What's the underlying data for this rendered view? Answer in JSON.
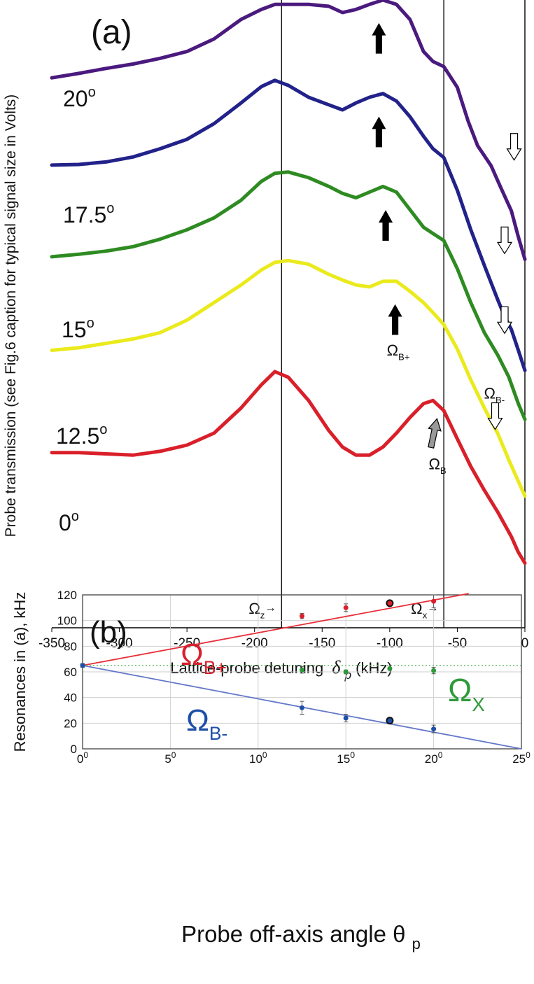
{
  "chart_data": [
    {
      "type": "line",
      "panel_label": "(a)",
      "xlabel": "Lattice-probe detuning",
      "xlabel_symbol": "δ",
      "xlabel_sub": "p",
      "xlabel_unit": "(kHz)",
      "ylabel": "Probe transmission (see Fig.6 caption for typical signal size in Volts)",
      "xlim": [
        -350,
        0
      ],
      "ylim": [
        0,
        100
      ],
      "xticks": [
        "-350",
        "-300",
        "-250",
        "-200",
        "-150",
        "-100",
        "-50",
        "0"
      ],
      "vlines": [
        {
          "x": -180,
          "label_main": "Ω",
          "label_sub": "z",
          "label_suffix": "→"
        },
        {
          "x": -60,
          "label_main": "Ω",
          "label_sub": "x",
          "label_suffix": "→"
        }
      ],
      "series": [
        {
          "name": "20°",
          "label_main": "20",
          "label_sup": "o",
          "color": "#4b1a7e",
          "x": [
            -350,
            -330,
            -310,
            -290,
            -270,
            -250,
            -230,
            -210,
            -195,
            -185,
            -175,
            -160,
            -145,
            -135,
            -125,
            -115,
            -105,
            -95,
            -85,
            -75,
            -68,
            -60,
            -50,
            -42,
            -35,
            -25,
            -18,
            -10,
            -5,
            0
          ],
          "y": [
            87.6,
            88.3,
            89.1,
            89.8,
            90.7,
            91.8,
            93.8,
            96.9,
            98.5,
            99.3,
            99.3,
            99.3,
            99.0,
            98.0,
            98.5,
            99.3,
            100.0,
            99.3,
            96.9,
            91.8,
            90.2,
            89.4,
            86.1,
            80.7,
            76.8,
            73.6,
            70.2,
            66.4,
            62.4,
            58.7
          ]
        },
        {
          "name": "17.5°",
          "label_main": "17.5",
          "label_sup": "o",
          "color": "#22228a",
          "x": [
            -350,
            -330,
            -310,
            -290,
            -270,
            -250,
            -230,
            -210,
            -195,
            -185,
            -175,
            -160,
            -145,
            -135,
            -125,
            -115,
            -105,
            -95,
            -85,
            -75,
            -68,
            -60,
            -50,
            -40,
            -30,
            -20,
            -15,
            -10,
            -5,
            0
          ],
          "y": [
            73.7,
            73.8,
            74.2,
            75.0,
            76.3,
            77.8,
            80.3,
            83.6,
            86.2,
            87.2,
            86.4,
            84.5,
            83.3,
            82.5,
            83.6,
            84.5,
            85.1,
            83.9,
            81.4,
            78.3,
            76.3,
            74.9,
            69.7,
            63.4,
            57.7,
            52.2,
            49.6,
            47.5,
            44.3,
            41.0
          ]
        },
        {
          "name": "15°",
          "label_main": "15",
          "label_sup": "o",
          "color": "#2e8b22",
          "x": [
            -350,
            -330,
            -310,
            -290,
            -270,
            -250,
            -230,
            -210,
            -195,
            -185,
            -175,
            -160,
            -145,
            -135,
            -125,
            -115,
            -105,
            -95,
            -85,
            -75,
            -68,
            -60,
            -50,
            -40,
            -30,
            -20,
            -12,
            -5,
            0
          ],
          "y": [
            59.1,
            59.5,
            60.0,
            60.7,
            61.9,
            63.4,
            65.3,
            68.1,
            71.1,
            72.4,
            72.6,
            71.7,
            70.3,
            69.2,
            68.5,
            69.4,
            70.3,
            69.4,
            66.6,
            63.8,
            62.8,
            61.7,
            57.2,
            51.8,
            47.0,
            43.4,
            40.0,
            35.8,
            33.2
          ]
        },
        {
          "name": "12.5°",
          "label_main": "12.5",
          "label_sup": "o",
          "color": "#eaea1c",
          "x": [
            -350,
            -330,
            -310,
            -290,
            -270,
            -250,
            -230,
            -210,
            -195,
            -185,
            -175,
            -160,
            -145,
            -135,
            -125,
            -115,
            -105,
            -95,
            -85,
            -75,
            -68,
            -60,
            -50,
            -40,
            -30,
            -20,
            -12,
            -5,
            0
          ],
          "y": [
            44.2,
            44.6,
            45.3,
            46.0,
            47.0,
            49.0,
            51.8,
            54.6,
            57.0,
            58.2,
            58.5,
            57.9,
            56.3,
            55.4,
            54.6,
            54.3,
            55.2,
            55.2,
            53.6,
            51.8,
            50.2,
            48.3,
            44.4,
            39.5,
            35.0,
            30.9,
            26.8,
            23.4,
            21.0
          ]
        },
        {
          "name": "0°",
          "label_main": "0",
          "label_sup": "o",
          "color": "#d9202a",
          "x": [
            -350,
            -330,
            -310,
            -290,
            -270,
            -250,
            -230,
            -210,
            -195,
            -185,
            -175,
            -160,
            -145,
            -135,
            -125,
            -115,
            -105,
            -95,
            -85,
            -75,
            -68,
            -60,
            -50,
            -40,
            -30,
            -20,
            -10,
            -5,
            0
          ],
          "y": [
            27.9,
            27.9,
            27.7,
            27.5,
            28.1,
            29.1,
            31.0,
            35.0,
            38.7,
            40.8,
            39.9,
            36.2,
            31.4,
            28.8,
            27.5,
            27.5,
            28.8,
            31.0,
            33.5,
            35.7,
            36.2,
            34.6,
            30.1,
            25.7,
            21.9,
            18.4,
            14.5,
            12.1,
            10.3
          ]
        }
      ],
      "annotations": [
        {
          "kind": "arrow-up",
          "fill": "#000000",
          "x": -108,
          "y": 96.2
        },
        {
          "kind": "arrow-up",
          "fill": "#000000",
          "x": -108,
          "y": 81.3
        },
        {
          "kind": "arrow-up",
          "fill": "#000000",
          "x": -103,
          "y": 66.4
        },
        {
          "kind": "arrow-up",
          "fill": "#000000",
          "x": -96,
          "y": 51.4,
          "label_main": "Ω",
          "label_sub": "B+"
        },
        {
          "kind": "arrow-up",
          "fill": "#999999",
          "x": -65,
          "y": 33.3,
          "label_main": "Ω",
          "label_sub": "B"
        },
        {
          "kind": "arrow-down",
          "fill": "#ffffff",
          "x": -8,
          "y": 74.5
        },
        {
          "kind": "arrow-down",
          "fill": "#ffffff",
          "x": -15,
          "y": 59.6
        },
        {
          "kind": "arrow-down",
          "fill": "#ffffff",
          "x": -15,
          "y": 46.9
        },
        {
          "kind": "arrow-down",
          "fill": "#ffffff",
          "x": -22,
          "y": 31.6,
          "label_main": "Ω",
          "label_sub": "B-"
        }
      ]
    },
    {
      "type": "scatter",
      "panel_label": "(b)",
      "xlabel": "Probe off-axis angle θ",
      "xlabel_sub": "p",
      "ylabel": "Resonances in (a), kHz",
      "xlim": [
        0,
        25
      ],
      "ylim": [
        0,
        120
      ],
      "xticks": [
        {
          "main": "0",
          "sup": "0"
        },
        {
          "main": "5",
          "sup": "0"
        },
        {
          "main": "10",
          "sup": "0"
        },
        {
          "main": "15",
          "sup": "0"
        },
        {
          "main": "20",
          "sup": "0"
        },
        {
          "main": "25",
          "sup": "0"
        }
      ],
      "yticks": [
        "0",
        "20",
        "40",
        "60",
        "80",
        "100",
        "120"
      ],
      "grid": true,
      "lines": [
        {
          "name": "Ω_B+ fit",
          "color": "#e8303a",
          "x": [
            0,
            22
          ],
          "y": [
            65,
            121
          ]
        },
        {
          "name": "Ω_B- fit",
          "color": "#6478c8",
          "x": [
            0,
            25
          ],
          "y": [
            65,
            0
          ]
        },
        {
          "name": "Ω_X level",
          "color": "#66bb66",
          "dashed": true,
          "x": [
            0,
            25
          ],
          "y": [
            65,
            65
          ]
        }
      ],
      "series": [
        {
          "name": "Ω_B+",
          "label_main": "Ω",
          "label_sub": "B+",
          "color": "#d8202e",
          "x": [
            0,
            12.5,
            15,
            17.5,
            20
          ],
          "y": [
            65,
            103.5,
            110,
            113.5,
            115
          ],
          "err": [
            1.5,
            2,
            3,
            1.5,
            5
          ]
        },
        {
          "name": "Ω_X",
          "label_main": "Ω",
          "label_sub": "X",
          "color": "#2e9a3a",
          "x": [
            0,
            12.5,
            15,
            17.5,
            20
          ],
          "y": [
            65,
            61.5,
            60,
            62.5,
            61
          ],
          "err": [
            1,
            2.5,
            1.5,
            1,
            2.5
          ]
        },
        {
          "name": "Ω_B-",
          "label_main": "Ω",
          "label_sub": "B-",
          "color": "#1e4fa8",
          "x": [
            0,
            12.5,
            15,
            17.5,
            20
          ],
          "y": [
            65,
            32,
            24,
            22,
            15.5
          ],
          "err": [
            1,
            5,
            3,
            1,
            3
          ]
        }
      ]
    }
  ]
}
